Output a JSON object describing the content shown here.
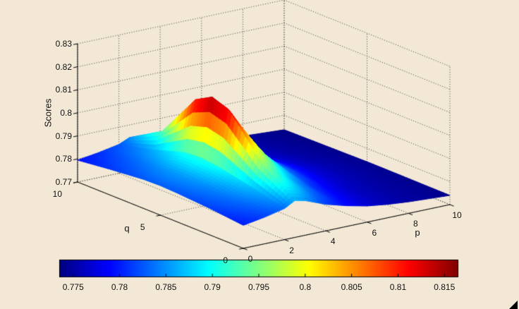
{
  "figure": {
    "background": "#f2e8d5"
  },
  "chart_data": {
    "type": "surface",
    "title": "",
    "xlabel": "p",
    "ylabel": "q",
    "zlabel": "Scores",
    "xlim": [
      0,
      10
    ],
    "ylim": [
      0,
      10
    ],
    "zlim": [
      0.77,
      0.83
    ],
    "grid": true,
    "view": {
      "azimuth": -37.5,
      "elevation": 30
    },
    "colormap": "jet",
    "color_range": [
      0.7735,
      0.8165
    ],
    "x_ticks": [
      0,
      2,
      4,
      6,
      8,
      10
    ],
    "x_tick_labels": [
      "0",
      "2",
      "4",
      "6",
      "8",
      "10"
    ],
    "y_ticks": [
      0,
      5,
      10
    ],
    "y_tick_labels": [
      "0",
      "5",
      "10"
    ],
    "z_ticks": [
      0.77,
      0.78,
      0.79,
      0.8,
      0.81,
      0.82,
      0.83
    ],
    "z_tick_labels": [
      "0.77",
      "0.78",
      "0.79",
      "0.8",
      "0.81",
      "0.82",
      "0.83"
    ],
    "colorbar_ticks": [
      0.775,
      0.78,
      0.785,
      0.79,
      0.795,
      0.8,
      0.805,
      0.81,
      0.815
    ],
    "colorbar_tick_labels": [
      "0.775",
      "0.78",
      "0.785",
      "0.79",
      "0.795",
      "0.8",
      "0.805",
      "0.81",
      "0.815"
    ],
    "surface": {
      "p": [
        0,
        1,
        2,
        2.5,
        3,
        4,
        5,
        6,
        7,
        8,
        9,
        10
      ],
      "q": [
        0,
        2,
        4,
        5,
        6,
        8,
        10
      ],
      "scores": [
        [
          0.78,
          0.7815,
          0.7835,
          0.786,
          0.785,
          0.7815,
          0.779,
          0.777,
          0.7758,
          0.775,
          0.7745,
          0.774
        ],
        [
          0.7815,
          0.7835,
          0.787,
          0.796,
          0.793,
          0.786,
          0.781,
          0.778,
          0.7762,
          0.7752,
          0.7746,
          0.7741
        ],
        [
          0.7825,
          0.785,
          0.79,
          0.814,
          0.807,
          0.7935,
          0.7845,
          0.7798,
          0.7771,
          0.7756,
          0.7748,
          0.7742
        ],
        [
          0.7828,
          0.7855,
          0.791,
          0.8165,
          0.8095,
          0.7955,
          0.7855,
          0.7803,
          0.7773,
          0.7757,
          0.7748,
          0.7742
        ],
        [
          0.7826,
          0.7852,
          0.7905,
          0.8125,
          0.806,
          0.793,
          0.7845,
          0.7797,
          0.777,
          0.7755,
          0.7747,
          0.7741
        ],
        [
          0.7812,
          0.783,
          0.786,
          0.793,
          0.79,
          0.784,
          0.78,
          0.7775,
          0.776,
          0.775,
          0.7744,
          0.7739
        ],
        [
          0.7795,
          0.7808,
          0.7825,
          0.7845,
          0.7838,
          0.7808,
          0.7782,
          0.7765,
          0.7754,
          0.7747,
          0.7742,
          0.7737
        ]
      ]
    }
  }
}
